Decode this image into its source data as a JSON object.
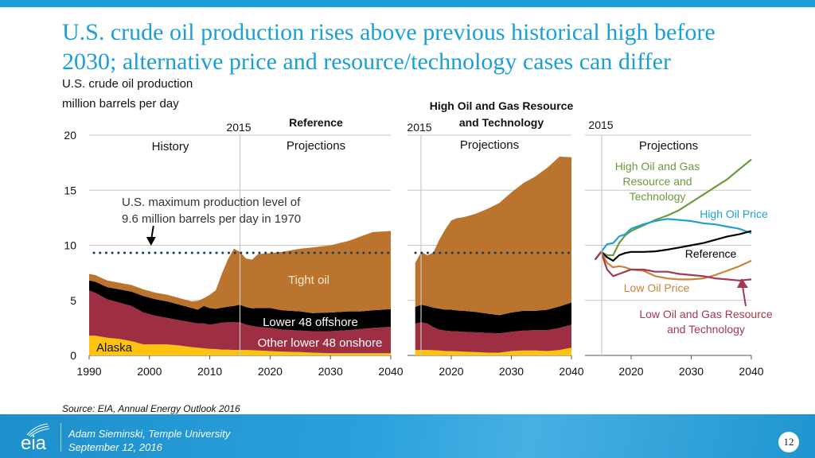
{
  "slide": {
    "title_line1": "U.S. crude oil production rises above previous historical high before",
    "title_line2": "2030; alternative price and resource/technology cases can differ",
    "subtitle": "U.S. crude oil production",
    "units": "million barrels per day",
    "source": "Source:  EIA, Annual Energy Outlook 2016",
    "presenter": "Adam Sieminski, Temple University",
    "date": "September 12, 2016",
    "page_number": "12",
    "logo_text": "eia"
  },
  "colors": {
    "title": "#1a9fd7",
    "tight_oil": "#bb742d",
    "offshore": "#000000",
    "onshore": "#9e2f43",
    "alaska": "#fdc30f",
    "dotted_line": "#1b3f5a",
    "grid": "#c8c8c8",
    "high_resource": "#6b9a3c",
    "high_price": "#21a0d6",
    "reference": "#000000",
    "low_price": "#c9843a",
    "low_resource": "#a23a4f"
  },
  "chart_data": [
    {
      "type": "area",
      "stacked": true,
      "title": "Reference",
      "ylabel": "million barrels per day",
      "ylim": [
        0,
        20
      ],
      "yticks": [
        "0",
        "5",
        "10",
        "15",
        "20"
      ],
      "xlim": [
        1990,
        2040
      ],
      "xticks": [
        "1990",
        "2000",
        "2010",
        "2020",
        "2030",
        "2040"
      ],
      "grid": true,
      "divider_label": "2015",
      "divider_year": 2015,
      "region_labels": [
        "History",
        "Projections"
      ],
      "x": [
        1990,
        1991,
        1993,
        1995,
        1997,
        1999,
        2001,
        2003,
        2005,
        2007,
        2008,
        2009,
        2010,
        2011,
        2012,
        2013,
        2014,
        2015,
        2016,
        2017,
        2018,
        2020,
        2022,
        2025,
        2027,
        2030,
        2033,
        2035,
        2037,
        2040
      ],
      "series": [
        {
          "name": "Alaska",
          "values": [
            1.8,
            1.8,
            1.6,
            1.5,
            1.3,
            1.0,
            1.0,
            1.0,
            0.9,
            0.75,
            0.7,
            0.65,
            0.6,
            0.58,
            0.53,
            0.52,
            0.5,
            0.5,
            0.5,
            0.48,
            0.45,
            0.4,
            0.35,
            0.3,
            0.25,
            0.2,
            0.2,
            0.2,
            0.2,
            0.2
          ]
        },
        {
          "name": "Other lower 48 onshore",
          "values": [
            4.1,
            3.9,
            3.5,
            3.3,
            3.2,
            2.9,
            2.6,
            2.4,
            2.3,
            2.25,
            2.2,
            2.25,
            2.2,
            2.3,
            2.45,
            2.5,
            2.5,
            2.5,
            2.3,
            2.2,
            2.15,
            2.1,
            2.0,
            1.95,
            1.95,
            2.0,
            2.1,
            2.2,
            2.3,
            2.4
          ]
        },
        {
          "name": "Lower 48 offshore",
          "values": [
            0.9,
            1.0,
            1.1,
            1.2,
            1.3,
            1.5,
            1.5,
            1.5,
            1.4,
            1.3,
            1.25,
            1.6,
            1.5,
            1.35,
            1.35,
            1.4,
            1.5,
            1.6,
            1.6,
            1.6,
            1.7,
            1.8,
            1.75,
            1.75,
            1.65,
            1.7,
            1.7,
            1.6,
            1.6,
            1.6
          ]
        },
        {
          "name": "Tight oil",
          "values": [
            0.6,
            0.6,
            0.6,
            0.6,
            0.6,
            0.6,
            0.6,
            0.6,
            0.6,
            0.6,
            0.8,
            0.7,
            1.2,
            1.7,
            3.1,
            4.3,
            5.2,
            4.8,
            4.4,
            4.42,
            4.9,
            5.0,
            5.3,
            5.7,
            5.95,
            6.1,
            6.4,
            6.8,
            7.1,
            7.1
          ]
        }
      ],
      "series_labels": {
        "tight_oil": "Tight oil",
        "offshore": "Lower 48 offshore",
        "onshore": "Other lower 48 onshore",
        "alaska": "Alaska"
      },
      "annotation": {
        "line1": "U.S. maximum production level of",
        "line2": "9.6 million barrels per day in 1970",
        "arrow_target_year": 2000,
        "historical_max": 9.6
      }
    },
    {
      "type": "area",
      "stacked": true,
      "title_line1": "High Oil and Gas Resource",
      "title_line2": "and Technology",
      "ylim": [
        0,
        20
      ],
      "xlim": [
        2014,
        2040
      ],
      "xticks": [
        "2020",
        "2030",
        "2040"
      ],
      "grid": true,
      "divider_label": "2015",
      "divider_year": 2015,
      "region_labels": [
        "Projections"
      ],
      "historical_max": 9.6,
      "x": [
        2014,
        2015,
        2016,
        2017,
        2018,
        2019,
        2020,
        2021,
        2022,
        2024,
        2026,
        2028,
        2030,
        2032,
        2034,
        2036,
        2038,
        2040
      ],
      "series": [
        {
          "name": "Alaska",
          "values": [
            0.5,
            0.5,
            0.5,
            0.48,
            0.45,
            0.4,
            0.4,
            0.38,
            0.35,
            0.3,
            0.25,
            0.25,
            0.4,
            0.45,
            0.45,
            0.4,
            0.5,
            0.7
          ]
        },
        {
          "name": "Other lower 48 onshore",
          "values": [
            2.4,
            2.5,
            2.4,
            2.1,
            1.9,
            1.85,
            1.8,
            1.8,
            1.8,
            1.8,
            1.8,
            1.75,
            1.75,
            1.8,
            1.85,
            1.9,
            2.0,
            2.1
          ]
        },
        {
          "name": "Lower 48 offshore",
          "values": [
            1.5,
            1.6,
            1.6,
            1.75,
            1.9,
            1.9,
            1.95,
            1.9,
            1.9,
            1.85,
            1.75,
            1.65,
            1.75,
            1.8,
            1.75,
            1.85,
            1.95,
            2.0
          ]
        },
        {
          "name": "Tight oil",
          "values": [
            4.0,
            4.8,
            4.6,
            5.0,
            6.25,
            7.3,
            8.1,
            8.4,
            8.5,
            8.9,
            9.5,
            10.2,
            10.9,
            11.6,
            12.2,
            12.9,
            13.6,
            13.2
          ]
        }
      ]
    },
    {
      "type": "line",
      "ylim": [
        0,
        20
      ],
      "xlim": [
        2014,
        2040
      ],
      "xticks": [
        "2020",
        "2030",
        "2040"
      ],
      "grid": true,
      "divider_label": "2015",
      "divider_year": 2015,
      "region_labels": [
        "Projections"
      ],
      "x": [
        2014,
        2015,
        2016,
        2017,
        2018,
        2019,
        2020,
        2022,
        2024,
        2026,
        2028,
        2030,
        2032,
        2034,
        2036,
        2038,
        2040
      ],
      "series": [
        {
          "name": "High Oil and Gas Resource and Technology",
          "label_lines": [
            "High Oil and Gas",
            "Resource and",
            "Technology"
          ],
          "color_key": "high_resource",
          "values": [
            8.7,
            9.4,
            9.1,
            9.1,
            10.2,
            10.9,
            11.3,
            11.8,
            12.3,
            12.7,
            13.2,
            13.9,
            14.6,
            15.3,
            16.0,
            16.9,
            17.8
          ]
        },
        {
          "name": "High Oil Price",
          "label_lines": [
            "High Oil Price"
          ],
          "color_key": "high_price",
          "values": [
            8.7,
            9.4,
            10.1,
            10.2,
            10.8,
            11.0,
            11.5,
            11.9,
            12.2,
            12.4,
            12.3,
            12.2,
            12.0,
            11.9,
            11.7,
            11.5,
            11.1
          ]
        },
        {
          "name": "Reference",
          "label_lines": [
            "Reference"
          ],
          "color_key": "reference",
          "values": [
            8.7,
            9.4,
            8.9,
            8.6,
            9.1,
            9.3,
            9.4,
            9.4,
            9.45,
            9.6,
            9.8,
            10.0,
            10.2,
            10.5,
            10.8,
            11.0,
            11.3
          ]
        },
        {
          "name": "Low Oil Price",
          "label_lines": [
            "Low Oil Price"
          ],
          "color_key": "low_price",
          "values": [
            8.7,
            9.4,
            8.4,
            8.0,
            8.1,
            8.0,
            7.8,
            7.7,
            7.2,
            7.0,
            6.9,
            6.9,
            7.0,
            7.3,
            7.7,
            8.1,
            8.6
          ]
        },
        {
          "name": "Low Oil and Gas Resource and Technology",
          "label_lines": [
            "Low Oil and Gas Resource",
            "and Technology"
          ],
          "color_key": "low_resource",
          "values": [
            8.7,
            9.4,
            7.8,
            7.2,
            7.4,
            7.6,
            7.8,
            7.8,
            7.6,
            7.6,
            7.4,
            7.3,
            7.2,
            7.0,
            6.9,
            6.8,
            6.9
          ]
        }
      ]
    }
  ]
}
